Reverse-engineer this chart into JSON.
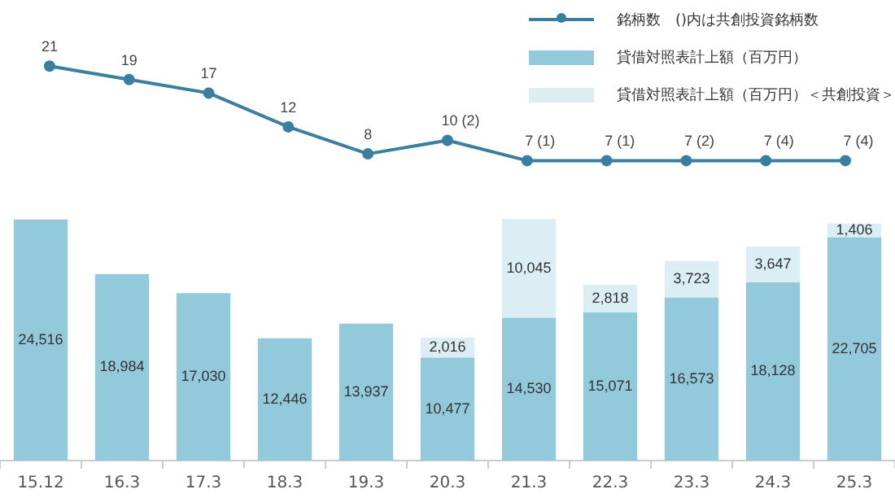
{
  "chart_data": [
    {
      "type": "line",
      "legend": "top right",
      "tick_labels": false,
      "grid": false,
      "marker": "circle",
      "categories": [
        "15.12",
        "16.3",
        "17.3",
        "18.3",
        "19.3",
        "20.3",
        "21.3",
        "22.3",
        "23.3",
        "24.3",
        "25.3"
      ],
      "series": [
        {
          "name": "銘柄数　()内は共創投資銘柄数",
          "color": "#3a7fa0",
          "values": [
            21,
            19,
            17,
            12,
            8,
            10,
            7,
            7,
            7,
            7,
            7
          ],
          "value_labels": [
            "21",
            "19",
            "17",
            "12",
            "8",
            "10 (2)",
            "7 (1)",
            "7 (1)",
            "7 (2)",
            "7 (4)",
            "7 (4)"
          ]
        }
      ]
    },
    {
      "type": "bar",
      "stacked": true,
      "legend": "top right",
      "tick_labels": "x",
      "grid": false,
      "categories": [
        "15.12",
        "16.3",
        "17.3",
        "18.3",
        "19.3",
        "20.3",
        "21.3",
        "22.3",
        "23.3",
        "24.3",
        "25.3"
      ],
      "series": [
        {
          "name": "貸借対照表計上額（百万円）",
          "color": "#92c9db",
          "values": [
            24516,
            18984,
            17030,
            12446,
            13937,
            10477,
            14530,
            15071,
            16573,
            18128,
            22705
          ],
          "value_labels": [
            "24,516",
            "18,984",
            "17,030",
            "12,446",
            "13,937",
            "10,477",
            "14,530",
            "15,071",
            "16,573",
            "18,128",
            "22,705"
          ]
        },
        {
          "name": "貸借対照表計上額（百万円）＜共創投資＞",
          "color": "#daeef4",
          "values": [
            null,
            null,
            null,
            null,
            null,
            2016,
            10045,
            2818,
            3723,
            3647,
            1406
          ],
          "value_labels": [
            null,
            null,
            null,
            null,
            null,
            "2,016",
            "10,045",
            "2,818",
            "3,723",
            "3,647",
            "1,406"
          ]
        }
      ]
    }
  ]
}
